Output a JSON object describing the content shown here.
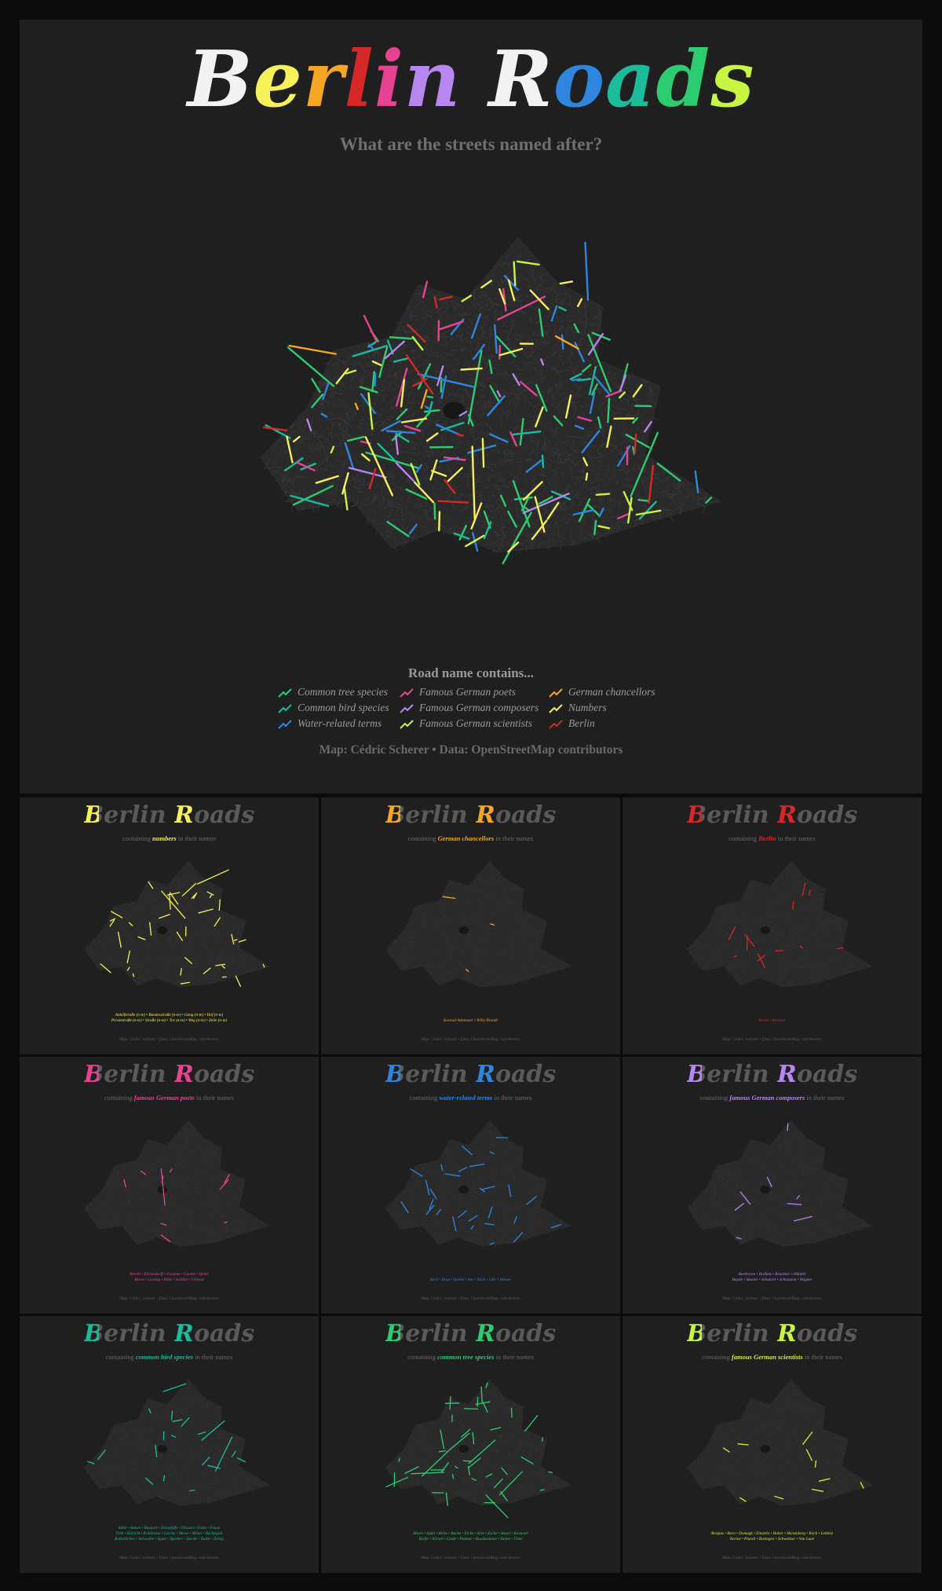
{
  "main": {
    "title_word1": "Berlin",
    "title_word2": "Roads",
    "subtitle": "What are the streets named after?",
    "legend_title": "Road name contains...",
    "legend": [
      {
        "label": "Common tree species",
        "color": "#2ecc71"
      },
      {
        "label": "Common bird species",
        "color": "#1abc9c"
      },
      {
        "label": "Water-related terms",
        "color": "#2e86de"
      },
      {
        "label": "Famous German poets",
        "color": "#e84393"
      },
      {
        "label": "Famous German composers",
        "color": "#b886f0"
      },
      {
        "label": "Famous German scientists",
        "color": "#c7f542"
      },
      {
        "label": "German chancellors",
        "color": "#f5a623"
      },
      {
        "label": "Numbers",
        "color": "#f6f05a"
      },
      {
        "label": "Berlin",
        "color": "#d62828"
      }
    ],
    "caption": "Map: Cédric Scherer • Data: OpenStreetMap contributors"
  },
  "small_panels": [
    {
      "title_word1": "Berlin",
      "title_word2": "Roads",
      "sub_pre": "containing",
      "sub_term": "numbers",
      "sub_post": "in their names",
      "color": "#f6f05a",
      "names": [
        "Anhöfstraße (n-te) • Bundesstraße (n-te) • Gang (n-te) • Hof (n-te)",
        "Privatstraße (n-te) • Straße (n-te) • Tor (n-te) • Weg (n-te) • Zeile (n-te)"
      ],
      "caption": "Map: Cédric Scherer • Data: OpenStreetMap contributors"
    },
    {
      "title_word1": "Berlin",
      "title_word2": "Roads",
      "sub_pre": "containing",
      "sub_term": "German chancellors",
      "sub_post": "in their names",
      "color": "#f5a623",
      "names": [
        "Konrad-Adenauer • Willy-Brandt"
      ],
      "caption": "Map: Cédric Scherer • Data: OpenStreetMap contributors"
    },
    {
      "title_word1": "Berlin",
      "title_word2": "Roads",
      "sub_pre": "containing",
      "sub_term": "Berlin",
      "sub_post": "in their names",
      "color": "#d62828",
      "names": [
        "Berlin • Berliner"
      ],
      "caption": "Map: Cédric Scherer • Data: OpenStreetMap contributors"
    },
    {
      "title_word1": "Berlin",
      "title_word2": "Roads",
      "sub_pre": "containing",
      "sub_term": "famous German poets",
      "sub_post": "in their names",
      "color": "#e84393",
      "names": [
        "Brecht • Eichendorff • Fontane • Goethe • Heine",
        "Hesse • Lessing • Rilke • Schiller • Uhland"
      ],
      "caption": "Map: Cédric Scherer • Data: OpenStreetMap contributors"
    },
    {
      "title_word1": "Berlin",
      "title_word2": "Roads",
      "sub_pre": "containing",
      "sub_term": "water-related terms",
      "sub_post": "in their names",
      "color": "#2e86de",
      "names": [
        "Bach • Brun • Quelle • See • Teich • Ufer • Wasser"
      ],
      "caption": "Map: Cédric Scherer • Data: OpenStreetMap contributors"
    },
    {
      "title_word1": "Berlin",
      "title_word2": "Roads",
      "sub_pre": "containing",
      "sub_term": "famous German composers",
      "sub_post": "in their names",
      "color": "#b886f0",
      "names": [
        "Beethoven • Brahms • Bruckner • Händel",
        "Haydn • Mozart • Schubert • Schumann • Wagner"
      ],
      "caption": "Map: Cédric Scherer • Data: OpenStreetMap contributors"
    },
    {
      "title_word1": "Berlin",
      "title_word2": "Roads",
      "sub_pre": "containing",
      "sub_term": "common bird species",
      "sub_post": "in their names",
      "color": "#1abc9c",
      "names": [
        "Adler • Amsel • Bussard • Dompfaffe • Drossel • Falke • Fasan",
        "Fink • Habicht • Kohlmeise • Lerche • Meise • Milan • Nachtigall",
        "Rotkehlchen • Schwalbe • Spatz • Sperber • Specht • Taube • Zeisig"
      ],
      "caption": "Map: Cédric Scherer • Data: OpenStreetMap contributors"
    },
    {
      "title_word1": "Berlin",
      "title_word2": "Roads",
      "sub_pre": "containing",
      "sub_term": "common tree species",
      "sub_post": "in their names",
      "color": "#2ecc71",
      "names": [
        "Ahorn • Apfel • Birke • Buche • Eiche • Erle • Esche • Hasel • Kastanie",
        "Kiefer • Kirsch • Linde • Platane • Rosskastanie • Tanne • Ulme"
      ],
      "caption": "Map: Cédric Scherer • Data: OpenStreetMap contributors"
    },
    {
      "title_word1": "Berlin",
      "title_word2": "Roads",
      "sub_pre": "containing",
      "sub_term": "famous German scientists",
      "sub_post": "in their names",
      "color": "#c7f542",
      "names": [
        "Bergius • Born • Domagk • Einstein • Haber • Heisenberg • Koch • Leibniz",
        "Nernst • Planck • Roentgen • Schweitzer • Von Laue"
      ],
      "caption": "Map: Cédric Scherer • Data: OpenStreetMap contributors"
    }
  ],
  "title_letter_colors": [
    "#f2f2f2",
    "#f6f05a",
    "#f5a623",
    "#d62828",
    "#e84393",
    "#b886f0",
    "#f2f2f2",
    "#2e86de",
    "#1abc9c",
    "#2ecc71",
    "#c7f542"
  ]
}
